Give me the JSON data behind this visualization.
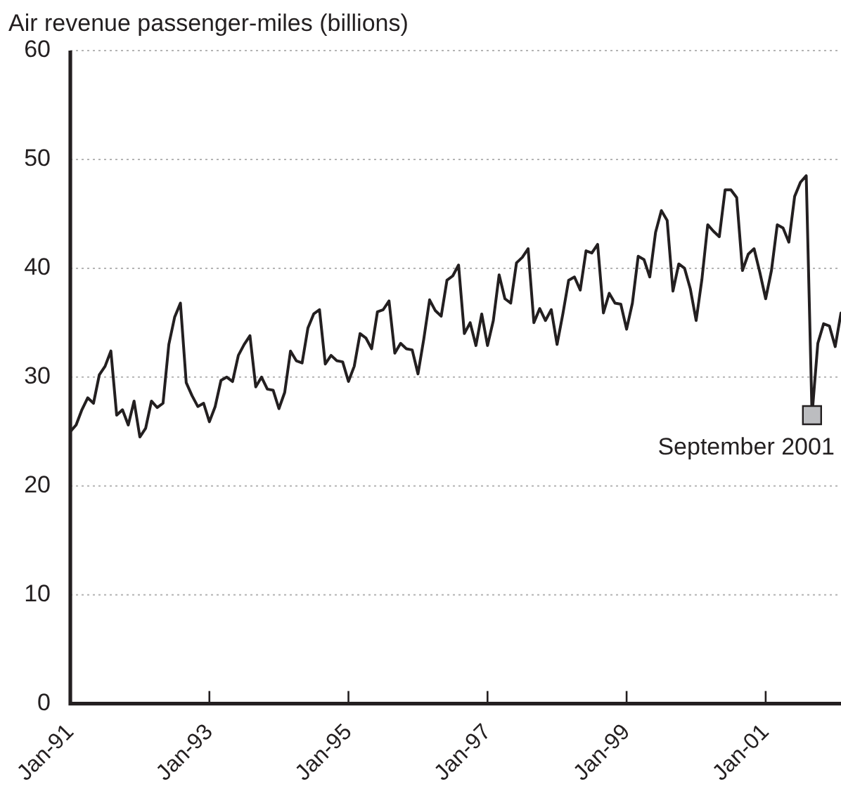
{
  "chart_data": {
    "type": "line",
    "ylabel": "Air revenue passenger-miles (billions)",
    "x": [
      "1991-01",
      "1991-02",
      "1991-03",
      "1991-04",
      "1991-05",
      "1991-06",
      "1991-07",
      "1991-08",
      "1991-09",
      "1991-10",
      "1991-11",
      "1991-12",
      "1992-01",
      "1992-02",
      "1992-03",
      "1992-04",
      "1992-05",
      "1992-06",
      "1992-07",
      "1992-08",
      "1992-09",
      "1992-10",
      "1992-11",
      "1992-12",
      "1993-01",
      "1993-02",
      "1993-03",
      "1993-04",
      "1993-05",
      "1993-06",
      "1993-07",
      "1993-08",
      "1993-09",
      "1993-10",
      "1993-11",
      "1993-12",
      "1994-01",
      "1994-02",
      "1994-03",
      "1994-04",
      "1994-05",
      "1994-06",
      "1994-07",
      "1994-08",
      "1994-09",
      "1994-10",
      "1994-11",
      "1994-12",
      "1995-01",
      "1995-02",
      "1995-03",
      "1995-04",
      "1995-05",
      "1995-06",
      "1995-07",
      "1995-08",
      "1995-09",
      "1995-10",
      "1995-11",
      "1995-12",
      "1996-01",
      "1996-02",
      "1996-03",
      "1996-04",
      "1996-05",
      "1996-06",
      "1996-07",
      "1996-08",
      "1996-09",
      "1996-10",
      "1996-11",
      "1996-12",
      "1997-01",
      "1997-02",
      "1997-03",
      "1997-04",
      "1997-05",
      "1997-06",
      "1997-07",
      "1997-08",
      "1997-09",
      "1997-10",
      "1997-11",
      "1997-12",
      "1998-01",
      "1998-02",
      "1998-03",
      "1998-04",
      "1998-05",
      "1998-06",
      "1998-07",
      "1998-08",
      "1998-09",
      "1998-10",
      "1998-11",
      "1998-12",
      "1999-01",
      "1999-02",
      "1999-03",
      "1999-04",
      "1999-05",
      "1999-06",
      "1999-07",
      "1999-08",
      "1999-09",
      "1999-10",
      "1999-11",
      "1999-12",
      "2000-01",
      "2000-02",
      "2000-03",
      "2000-04",
      "2000-05",
      "2000-06",
      "2000-07",
      "2000-08",
      "2000-09",
      "2000-10",
      "2000-11",
      "2000-12",
      "2001-01",
      "2001-02",
      "2001-03",
      "2001-04",
      "2001-05",
      "2001-06",
      "2001-07",
      "2001-08",
      "2001-09",
      "2001-10",
      "2001-11",
      "2001-12",
      "2002-01",
      "2002-02"
    ],
    "series": [
      {
        "color": "#231f20",
        "values": [
          25.0,
          25.6,
          27.0,
          28.1,
          27.6,
          30.2,
          31.0,
          32.4,
          26.5,
          27.0,
          25.6,
          27.8,
          24.5,
          25.3,
          27.8,
          27.2,
          27.6,
          33.0,
          35.5,
          36.8,
          29.5,
          28.3,
          27.3,
          27.6,
          25.9,
          27.3,
          29.7,
          30.0,
          29.6,
          32.0,
          33.0,
          33.8,
          29.1,
          30.0,
          28.9,
          28.8,
          27.1,
          28.6,
          32.4,
          31.5,
          31.3,
          34.5,
          35.8,
          36.2,
          31.2,
          32.0,
          31.5,
          31.4,
          29.6,
          31.0,
          34.0,
          33.6,
          32.6,
          36.0,
          36.2,
          37.0,
          32.2,
          33.1,
          32.6,
          32.5,
          30.3,
          33.5,
          37.1,
          36.1,
          35.6,
          38.9,
          39.3,
          40.3,
          34.0,
          35.0,
          32.9,
          35.8,
          32.9,
          35.2,
          39.4,
          37.2,
          36.8,
          40.5,
          41.0,
          41.8,
          35.0,
          36.3,
          35.2,
          36.2,
          33.0,
          35.8,
          38.9,
          39.2,
          38.0,
          41.6,
          41.4,
          42.2,
          35.9,
          37.7,
          36.8,
          36.7,
          34.4,
          36.8,
          41.1,
          40.8,
          39.2,
          43.3,
          45.3,
          44.4,
          37.9,
          40.4,
          40.0,
          38.1,
          35.2,
          39.0,
          44.0,
          43.4,
          42.9,
          47.2,
          47.2,
          46.5,
          39.8,
          41.3,
          41.8,
          39.6,
          37.2,
          39.8,
          44.0,
          43.7,
          42.4,
          46.6,
          47.9,
          48.5,
          26.5,
          33.1,
          34.9,
          34.7,
          32.8,
          35.9
        ]
      }
    ],
    "xlim": [
      "1991-01",
      "2002-02"
    ],
    "xticks": [
      {
        "value": "1991-01",
        "label": "Jan-91"
      },
      {
        "value": "1993-01",
        "label": "Jan-93"
      },
      {
        "value": "1995-01",
        "label": "Jan-95"
      },
      {
        "value": "1997-01",
        "label": "Jan-97"
      },
      {
        "value": "1999-01",
        "label": "Jan-99"
      },
      {
        "value": "2001-01",
        "label": "Jan-01"
      }
    ],
    "ylim": [
      0,
      60
    ],
    "yticks": [
      0,
      10,
      20,
      30,
      40,
      50,
      60
    ],
    "grid": "y",
    "legend": false,
    "marker": "none",
    "line_style": "solid",
    "annotations": [
      {
        "text": "September 2001",
        "x": "2001-09",
        "y": 26.5
      }
    ]
  }
}
